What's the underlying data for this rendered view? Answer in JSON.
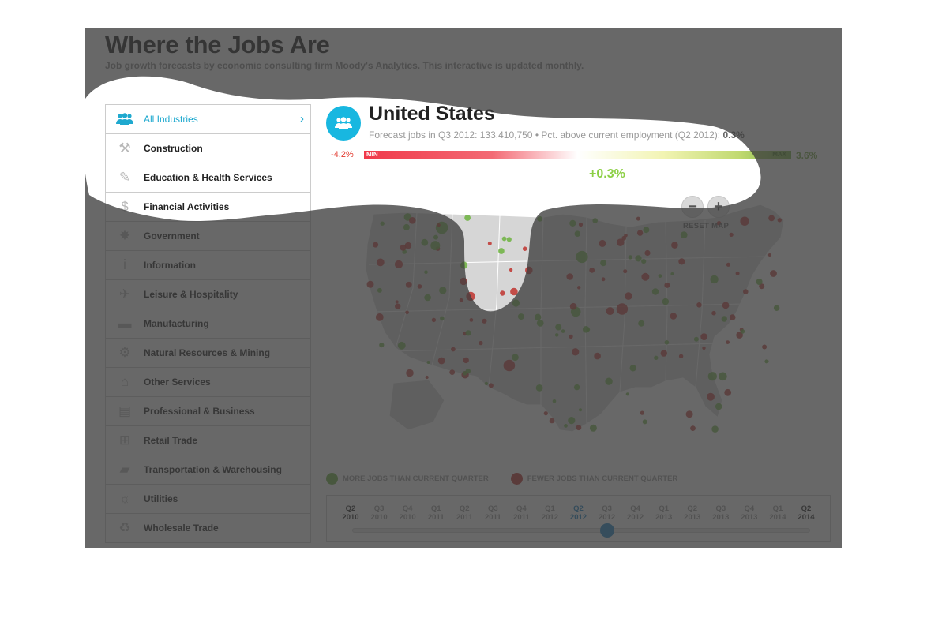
{
  "header": {
    "title": "Where the Jobs Are",
    "subtitle": "Job growth forecasts by economic consulting firm Moody's Analytics. This interactive is updated monthly."
  },
  "sidebar": {
    "items": [
      {
        "label": "All Industries",
        "icon": "people-icon",
        "active": true
      },
      {
        "label": "Construction",
        "icon": "hammer-icon"
      },
      {
        "label": "Education & Health Services",
        "icon": "education-icon"
      },
      {
        "label": "Financial Activities",
        "icon": "money-icon"
      },
      {
        "label": "Government",
        "icon": "star-badge-icon"
      },
      {
        "label": "Information",
        "icon": "info-icon"
      },
      {
        "label": "Leisure & Hospitality",
        "icon": "airplane-icon"
      },
      {
        "label": "Manufacturing",
        "icon": "car-icon"
      },
      {
        "label": "Natural Resources & Mining",
        "icon": "gear-icon"
      },
      {
        "label": "Other Services",
        "icon": "house-icon"
      },
      {
        "label": "Professional & Business",
        "icon": "briefcase-icon"
      },
      {
        "label": "Retail Trade",
        "icon": "shopping-cart-icon"
      },
      {
        "label": "Transportation & Warehousing",
        "icon": "truck-icon"
      },
      {
        "label": "Utilities",
        "icon": "lightbulb-icon"
      },
      {
        "label": "Wholesale Trade",
        "icon": "recycle-icon"
      }
    ]
  },
  "region": {
    "name": "United States",
    "desc_prefix": "Forecast jobs in Q3 2012: ",
    "forecast_jobs": "133,410,750",
    "desc_middle": " • Pct. above current employment (Q2 2012): ",
    "pct": "0.3%"
  },
  "scale": {
    "min_value": "-4.2%",
    "max_value": "3.6%",
    "min_label": "MIN",
    "max_label": "MAX",
    "current_value": "+0.3%"
  },
  "map": {
    "reset_label": "RESET MAP",
    "zoom_out": "−",
    "zoom_in": "+"
  },
  "legend": {
    "more_label": "MORE JOBS THAN CURRENT QUARTER",
    "fewer_label": "FEWER JOBS THAN CURRENT QUARTER",
    "more_color": "#6db33f",
    "fewer_color": "#c0342f"
  },
  "timeline": {
    "quarters": [
      {
        "q": "Q2",
        "y": "2010"
      },
      {
        "q": "Q3",
        "y": "2010"
      },
      {
        "q": "Q4",
        "y": "2010"
      },
      {
        "q": "Q1",
        "y": "2011"
      },
      {
        "q": "Q2",
        "y": "2011"
      },
      {
        "q": "Q3",
        "y": "2011"
      },
      {
        "q": "Q4",
        "y": "2011"
      },
      {
        "q": "Q1",
        "y": "2012"
      },
      {
        "q": "Q2",
        "y": "2012"
      },
      {
        "q": "Q3",
        "y": "2012"
      },
      {
        "q": "Q4",
        "y": "2012"
      },
      {
        "q": "Q1",
        "y": "2013"
      },
      {
        "q": "Q2",
        "y": "2013"
      },
      {
        "q": "Q3",
        "y": "2013"
      },
      {
        "q": "Q4",
        "y": "2013"
      },
      {
        "q": "Q1",
        "y": "2014"
      },
      {
        "q": "Q2",
        "y": "2014"
      }
    ],
    "selected_index": 8,
    "handle_index": 9
  }
}
